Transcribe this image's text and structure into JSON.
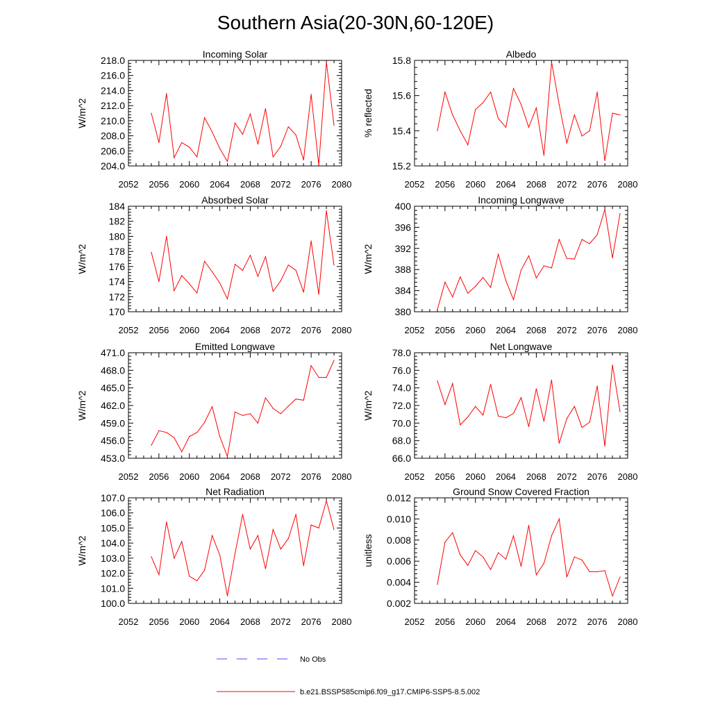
{
  "title": "Southern Asia(20-30N,60-120E)",
  "line_color": "#ff0000",
  "obs_color": "#4a4aff",
  "legend": {
    "obs_label": "No Obs",
    "model_label": "b.e21.BSSP585cmip6.f09_g17.CMIP6-SSP5-8.5.002"
  },
  "chart_data": [
    {
      "type": "line",
      "title": "Incoming Solar",
      "ylabel": "W/m^2",
      "xlim": [
        2052,
        2080
      ],
      "ylim": [
        204,
        218
      ],
      "xticks": [
        "2052",
        "2056",
        "2060",
        "2064",
        "2068",
        "2072",
        "2076",
        "2080"
      ],
      "yticks": [
        "204.0",
        "206.0",
        "208.0",
        "210.0",
        "212.0",
        "214.0",
        "216.0",
        "218.0"
      ],
      "x": [
        2055,
        2056,
        2057,
        2058,
        2059,
        2060,
        2061,
        2062,
        2063,
        2064,
        2065,
        2066,
        2067,
        2068,
        2069,
        2070,
        2071,
        2072,
        2073,
        2074,
        2075,
        2076,
        2077,
        2078,
        2079
      ],
      "values": [
        211.0,
        207.1,
        213.6,
        205.1,
        207.1,
        206.5,
        205.2,
        210.4,
        208.5,
        206.3,
        204.6,
        209.7,
        208.2,
        210.9,
        206.9,
        211.6,
        205.2,
        206.6,
        209.2,
        208.1,
        204.8,
        213.5,
        204.1,
        217.8,
        209.4
      ]
    },
    {
      "type": "line",
      "title": "Albedo",
      "ylabel": "% reflected",
      "xlim": [
        2052,
        2080
      ],
      "ylim": [
        15.2,
        15.8
      ],
      "xticks": [
        "2052",
        "2056",
        "2060",
        "2064",
        "2068",
        "2072",
        "2076",
        "2080"
      ],
      "yticks": [
        "15.2",
        "15.4",
        "15.6",
        "15.8"
      ],
      "x": [
        2055,
        2056,
        2057,
        2058,
        2059,
        2060,
        2061,
        2062,
        2063,
        2064,
        2065,
        2066,
        2067,
        2068,
        2069,
        2070,
        2071,
        2072,
        2073,
        2074,
        2075,
        2076,
        2077,
        2078,
        2079
      ],
      "values": [
        15.4,
        15.62,
        15.49,
        15.4,
        15.32,
        15.52,
        15.56,
        15.62,
        15.47,
        15.42,
        15.64,
        15.55,
        15.42,
        15.53,
        15.26,
        15.79,
        15.55,
        15.33,
        15.49,
        15.37,
        15.4,
        15.62,
        15.23,
        15.5,
        15.49
      ]
    },
    {
      "type": "line",
      "title": "Absorbed Solar",
      "ylabel": "W/m^2",
      "xlim": [
        2052,
        2080
      ],
      "ylim": [
        170,
        184
      ],
      "xticks": [
        "2052",
        "2056",
        "2060",
        "2064",
        "2068",
        "2072",
        "2076",
        "2080"
      ],
      "yticks": [
        "170",
        "172",
        "174",
        "176",
        "178",
        "180",
        "182",
        "184"
      ],
      "x": [
        2055,
        2056,
        2057,
        2058,
        2059,
        2060,
        2061,
        2062,
        2063,
        2064,
        2065,
        2066,
        2067,
        2068,
        2069,
        2070,
        2071,
        2072,
        2073,
        2074,
        2075,
        2076,
        2077,
        2078,
        2079
      ],
      "values": [
        177.9,
        174.0,
        180.0,
        172.8,
        174.8,
        173.7,
        172.5,
        176.7,
        175.3,
        173.8,
        171.7,
        176.3,
        175.5,
        177.5,
        174.7,
        177.3,
        172.7,
        174.1,
        176.2,
        175.5,
        172.6,
        179.4,
        172.3,
        183.4,
        176.2
      ]
    },
    {
      "type": "line",
      "title": "Incoming Longwave",
      "ylabel": "W/m^2",
      "xlim": [
        2052,
        2080
      ],
      "ylim": [
        380,
        400
      ],
      "xticks": [
        "2052",
        "2056",
        "2060",
        "2064",
        "2068",
        "2072",
        "2076",
        "2080"
      ],
      "yticks": [
        "380",
        "384",
        "388",
        "392",
        "396",
        "400"
      ],
      "x": [
        2055,
        2056,
        2057,
        2058,
        2059,
        2060,
        2061,
        2062,
        2063,
        2064,
        2065,
        2066,
        2067,
        2068,
        2069,
        2070,
        2071,
        2072,
        2073,
        2074,
        2075,
        2076,
        2077,
        2078,
        2079
      ],
      "values": [
        380.4,
        385.6,
        382.8,
        386.6,
        383.5,
        384.8,
        386.5,
        384.6,
        390.9,
        385.9,
        382.3,
        387.9,
        390.6,
        386.4,
        388.7,
        388.3,
        393.7,
        390.1,
        390.0,
        393.7,
        392.9,
        394.6,
        399.4,
        390.2,
        398.6
      ]
    },
    {
      "type": "line",
      "title": "Emitted Longwave",
      "ylabel": "W/m^2",
      "xlim": [
        2052,
        2080
      ],
      "ylim": [
        453,
        471
      ],
      "xticks": [
        "2052",
        "2056",
        "2060",
        "2064",
        "2068",
        "2072",
        "2076",
        "2080"
      ],
      "yticks": [
        "453.0",
        "456.0",
        "459.0",
        "462.0",
        "465.0",
        "468.0",
        "471.0"
      ],
      "x": [
        2055,
        2056,
        2057,
        2058,
        2059,
        2060,
        2061,
        2062,
        2063,
        2064,
        2065,
        2066,
        2067,
        2068,
        2069,
        2070,
        2071,
        2072,
        2073,
        2074,
        2075,
        2076,
        2077,
        2078,
        2079
      ],
      "values": [
        455.2,
        457.7,
        457.4,
        456.5,
        454.1,
        456.7,
        457.4,
        459.1,
        461.8,
        456.7,
        453.3,
        460.9,
        460.3,
        460.6,
        459.0,
        463.3,
        461.5,
        460.6,
        461.9,
        463.1,
        462.9,
        468.8,
        466.8,
        466.8,
        469.7
      ]
    },
    {
      "type": "line",
      "title": "Net Longwave",
      "ylabel": "W/m^2",
      "xlim": [
        2052,
        2080
      ],
      "ylim": [
        66,
        78
      ],
      "xticks": [
        "2052",
        "2056",
        "2060",
        "2064",
        "2068",
        "2072",
        "2076",
        "2080"
      ],
      "yticks": [
        "66.0",
        "68.0",
        "70.0",
        "72.0",
        "74.0",
        "76.0",
        "78.0"
      ],
      "x": [
        2055,
        2056,
        2057,
        2058,
        2059,
        2060,
        2061,
        2062,
        2063,
        2064,
        2065,
        2066,
        2067,
        2068,
        2069,
        2070,
        2071,
        2072,
        2073,
        2074,
        2075,
        2076,
        2077,
        2078,
        2079
      ],
      "values": [
        74.8,
        72.1,
        74.5,
        69.8,
        70.7,
        71.9,
        70.9,
        74.4,
        70.8,
        70.6,
        71.1,
        72.9,
        69.6,
        73.9,
        70.2,
        74.9,
        67.7,
        70.5,
        71.9,
        69.5,
        70.1,
        74.2,
        67.4,
        76.6,
        71.3
      ]
    },
    {
      "type": "line",
      "title": "Net Radiation",
      "ylabel": "W/m^2",
      "xlim": [
        2052,
        2080
      ],
      "ylim": [
        100,
        107
      ],
      "xticks": [
        "2052",
        "2056",
        "2060",
        "2064",
        "2068",
        "2072",
        "2076",
        "2080"
      ],
      "yticks": [
        "100.0",
        "101.0",
        "102.0",
        "103.0",
        "104.0",
        "105.0",
        "106.0",
        "107.0"
      ],
      "x": [
        2055,
        2056,
        2057,
        2058,
        2059,
        2060,
        2061,
        2062,
        2063,
        2064,
        2065,
        2066,
        2067,
        2068,
        2069,
        2070,
        2071,
        2072,
        2073,
        2074,
        2075,
        2076,
        2077,
        2078,
        2079
      ],
      "values": [
        103.1,
        101.9,
        105.4,
        103.0,
        104.1,
        101.8,
        101.5,
        102.2,
        104.5,
        103.2,
        100.5,
        103.3,
        105.9,
        103.6,
        104.5,
        102.3,
        104.9,
        103.6,
        104.3,
        105.9,
        102.5,
        105.2,
        105.0,
        106.8,
        104.9
      ]
    },
    {
      "type": "line",
      "title": "Ground Snow Covered Fraction",
      "ylabel": "unitless",
      "xlim": [
        2052,
        2080
      ],
      "ylim": [
        0.002,
        0.012
      ],
      "xticks": [
        "2052",
        "2056",
        "2060",
        "2064",
        "2068",
        "2072",
        "2076",
        "2080"
      ],
      "yticks": [
        "0.002",
        "0.004",
        "0.006",
        "0.008",
        "0.010",
        "0.012"
      ],
      "x": [
        2055,
        2056,
        2057,
        2058,
        2059,
        2060,
        2061,
        2062,
        2063,
        2064,
        2065,
        2066,
        2067,
        2068,
        2069,
        2070,
        2071,
        2072,
        2073,
        2074,
        2075,
        2076,
        2077,
        2078,
        2079
      ],
      "values": [
        0.0038,
        0.0078,
        0.0087,
        0.0066,
        0.0056,
        0.007,
        0.0064,
        0.0052,
        0.0068,
        0.0062,
        0.0084,
        0.0055,
        0.0094,
        0.0047,
        0.0058,
        0.0084,
        0.01,
        0.0045,
        0.0064,
        0.0061,
        0.005,
        0.005,
        0.0051,
        0.0027,
        0.0045
      ]
    }
  ]
}
